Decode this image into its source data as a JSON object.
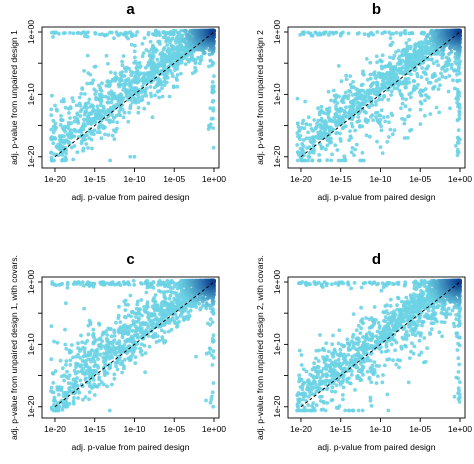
{
  "colors": {
    "point_light": "#6cd3e4",
    "point_dark": "#0a3d8f",
    "diagonal": "#000000"
  },
  "chart_data": [
    {
      "type": "scatter",
      "panel_label": "a",
      "xlabel": "adj. p-value from paired design",
      "ylabel": "adj. p-value from unpaired design 1",
      "log_scale": true,
      "xlim_log10": [
        -21,
        0
      ],
      "ylim_log10": [
        -21,
        0
      ],
      "x_tick_labels": [
        "1e-20",
        "1e-15",
        "1e-10",
        "1e-05",
        "1e+00"
      ],
      "y_tick_labels": [
        "1e-20",
        "1e-10",
        "1e+00"
      ],
      "reference_line": "y = x (dashed)",
      "density_shading": true,
      "point_cloud": {
        "seed": 11,
        "n_main": 1300,
        "n_dense": 260,
        "spread_above": 4.2,
        "spread_below": 1.6,
        "top_row_density": 0.55,
        "right_col_density": 0.35,
        "outliers_below": 6
      },
      "notable_points": [
        {
          "x": 1e-10,
          "y": 1e-20
        },
        {
          "x": 3e-11,
          "y": 1e-20
        }
      ]
    },
    {
      "type": "scatter",
      "panel_label": "b",
      "xlabel": "adj. p-value from paired design",
      "ylabel": "adj. p-value from unpaired design 2",
      "log_scale": true,
      "xlim_log10": [
        -21,
        0
      ],
      "ylim_log10": [
        -21,
        0
      ],
      "x_tick_labels": [
        "1e-20",
        "1e-15",
        "1e-10",
        "1e-05",
        "1e+00"
      ],
      "y_tick_labels": [
        "1e-20",
        "1e-10",
        "1e+00"
      ],
      "reference_line": "y = x (dashed)",
      "density_shading": true,
      "point_cloud": {
        "seed": 23,
        "n_main": 1300,
        "n_dense": 260,
        "spread_above": 3.6,
        "spread_below": 3.2,
        "top_row_density": 0.45,
        "right_col_density": 0.45,
        "outliers_below": 40
      },
      "notable_points": []
    },
    {
      "type": "scatter",
      "panel_label": "c",
      "xlabel": "adj. p-value from paired design",
      "ylabel": "adj. p-value from unpaired design 1, with covars.",
      "log_scale": true,
      "xlim_log10": [
        -21,
        0
      ],
      "ylim_log10": [
        -21,
        0
      ],
      "x_tick_labels": [
        "1e-20",
        "1e-15",
        "1e-10",
        "1e-05",
        "1e+00"
      ],
      "y_tick_labels": [
        "1e-20",
        "1e-10",
        "1e+00"
      ],
      "reference_line": "y = x (dashed)",
      "density_shading": true,
      "point_cloud": {
        "seed": 37,
        "n_main": 1300,
        "n_dense": 260,
        "spread_above": 4.6,
        "spread_below": 1.4,
        "top_row_density": 0.8,
        "right_col_density": 0.3,
        "outliers_below": 4
      },
      "notable_points": [
        {
          "x": 0.1,
          "y": 1e-19
        }
      ]
    },
    {
      "type": "scatter",
      "panel_label": "d",
      "xlabel": "adj. p-value from paired design",
      "ylabel": "adj. p-value from unpaired design 2, with covars.",
      "log_scale": true,
      "xlim_log10": [
        -21,
        0
      ],
      "ylim_log10": [
        -21,
        0
      ],
      "x_tick_labels": [
        "1e-20",
        "1e-15",
        "1e-10",
        "1e-05",
        "1e+00"
      ],
      "y_tick_labels": [
        "1e-20",
        "1e-10",
        "1e+00"
      ],
      "reference_line": "y = x (dashed)",
      "density_shading": true,
      "point_cloud": {
        "seed": 51,
        "n_main": 1300,
        "n_dense": 260,
        "spread_above": 3.8,
        "spread_below": 2.6,
        "top_row_density": 0.55,
        "right_col_density": 0.4,
        "outliers_below": 25
      },
      "notable_points": []
    }
  ]
}
